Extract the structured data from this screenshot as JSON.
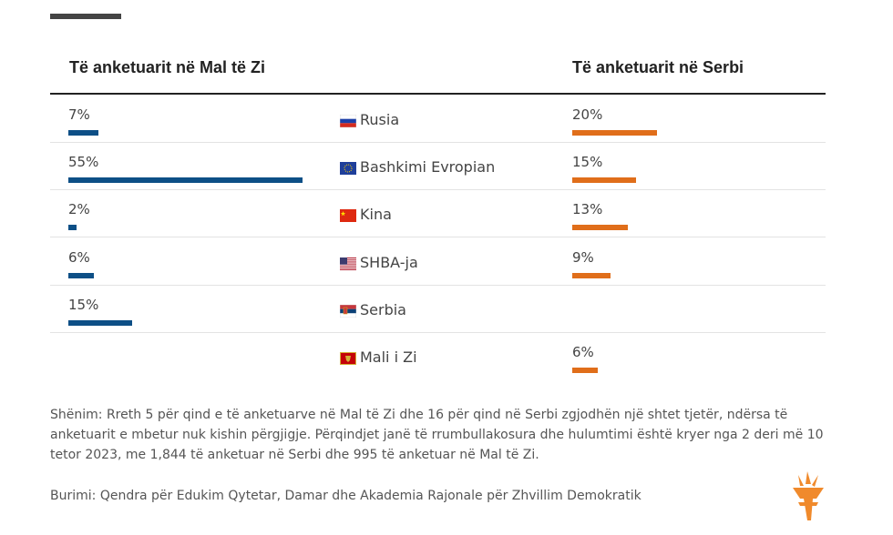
{
  "header": {
    "left": "Të anketuarit në Mal të Zi",
    "right": "Të anketuarit në Serbi"
  },
  "chart_data": {
    "type": "bar",
    "categories": [
      "Rusia",
      "Bashkimi Evropian",
      "Kina",
      "SHBA-ja",
      "Serbia",
      "Mali i Zi"
    ],
    "series": [
      {
        "name": "Të anketuarit në Mal të Zi",
        "color": "#0d4f86",
        "values": [
          7,
          55,
          2,
          6,
          15,
          null
        ],
        "labels": [
          "7%",
          "55%",
          "2%",
          "6%",
          "15%",
          ""
        ]
      },
      {
        "name": "Të anketuarit në Serbi",
        "color": "#e06e1a",
        "values": [
          20,
          15,
          13,
          9,
          null,
          6
        ],
        "labels": [
          "20%",
          "15%",
          "13%",
          "9%",
          "",
          "6%"
        ]
      }
    ],
    "flags": [
      "russia-flag-icon",
      "eu-flag-icon",
      "china-flag-icon",
      "usa-flag-icon",
      "serbia-flag-icon",
      "montenegro-flag-icon"
    ],
    "xlim": [
      0,
      55
    ]
  },
  "note": "Shënim: Rreth 5 për qind e të anketuarve në Mal të Zi dhe 16 për qind në Serbi zgjodhën një shtet tjetër, ndërsa të anketuarit e mbetur nuk kishin përgjigje. Përqindjet janë të rrumbullakosura dhe hulumtimi është kryer nga 2 deri më 10 tetor 2023, me 1,844 të anketuar në Serbi dhe 995 të anketuar në Mal të Zi.",
  "source": "Burimi: Qendra për Edukim Qytetar, Damar dhe Akademia Rajonale për Zhvillim Demokratik"
}
